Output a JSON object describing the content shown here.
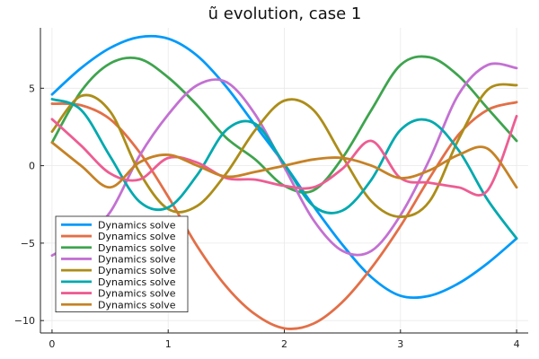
{
  "chart_data": {
    "type": "line",
    "title": "ũ evolution, case 1",
    "xlabel": "",
    "ylabel": "",
    "xlim": [
      -0.1,
      4.1
    ],
    "ylim": [
      -10.8,
      8.9
    ],
    "xticks": [
      0,
      1,
      2,
      3,
      4
    ],
    "yticks": [
      -10,
      -5,
      0,
      5
    ],
    "xtick_labels": [
      "0",
      "1",
      "2",
      "3",
      "4"
    ],
    "ytick_labels": [
      "−10",
      "−5",
      "0",
      "5"
    ],
    "grid": true,
    "legend_position": "bottom-left",
    "x": [
      0,
      0.25,
      0.5,
      0.75,
      1,
      1.25,
      1.5,
      1.75,
      2,
      2.25,
      2.5,
      2.75,
      3,
      3.25,
      3.5,
      3.75,
      4
    ],
    "series": [
      {
        "name": "Dynamics solve",
        "color": "#009AFA",
        "values": [
          4.6,
          6.3,
          7.6,
          8.3,
          8.2,
          7.1,
          5.1,
          2.6,
          0.1,
          -2.6,
          -5.1,
          -7.2,
          -8.4,
          -8.4,
          -7.6,
          -6.3,
          -4.7
        ]
      },
      {
        "name": "Dynamics solve",
        "color": "#E36F47",
        "values": [
          4.0,
          3.9,
          3.0,
          0.9,
          -2.0,
          -5.2,
          -7.8,
          -9.6,
          -10.5,
          -10.2,
          -8.8,
          -6.6,
          -3.9,
          -0.8,
          2.0,
          3.6,
          4.1
        ]
      },
      {
        "name": "Dynamics solve",
        "color": "#3EA44E",
        "values": [
          1.5,
          4.8,
          6.6,
          6.9,
          5.7,
          3.9,
          1.8,
          0.4,
          -1.3,
          -1.6,
          0.5,
          3.6,
          6.5,
          7.0,
          5.8,
          3.7,
          1.6
        ]
      },
      {
        "name": "Dynamics solve",
        "color": "#C371D2",
        "values": [
          -5.8,
          -4.7,
          -3.0,
          0.6,
          3.3,
          5.2,
          5.4,
          3.3,
          -0.1,
          -3.5,
          -5.5,
          -5.5,
          -3.2,
          0.4,
          4.6,
          6.5,
          6.3
        ]
      },
      {
        "name": "Dynamics solve",
        "color": "#AC8D19",
        "values": [
          2.2,
          4.5,
          3.5,
          -0.4,
          -2.8,
          -2.6,
          -0.5,
          2.3,
          4.2,
          3.6,
          0.6,
          -2.3,
          -3.3,
          -2.3,
          1.7,
          4.9,
          5.2
        ]
      },
      {
        "name": "Dynamics solve",
        "color": "#00A9AE",
        "values": [
          4.3,
          3.6,
          0.6,
          -2.3,
          -2.7,
          -0.6,
          2.3,
          2.7,
          0.1,
          -2.6,
          -2.9,
          -0.9,
          2.3,
          2.9,
          1.0,
          -2.2,
          -4.7
        ]
      },
      {
        "name": "Dynamics solve",
        "color": "#ED5D92",
        "values": [
          3.0,
          1.3,
          -0.5,
          -0.9,
          0.5,
          0.2,
          -0.8,
          -0.9,
          -1.3,
          -1.4,
          -0.2,
          1.6,
          -0.8,
          -1.1,
          -1.4,
          -1.6,
          3.2
        ]
      },
      {
        "name": "Dynamics solve",
        "color": "#C68225",
        "values": [
          1.5,
          0.0,
          -1.4,
          0.2,
          0.7,
          0.0,
          -0.7,
          -0.4,
          0.0,
          0.4,
          0.5,
          0.0,
          -0.8,
          -0.3,
          0.7,
          1.1,
          -1.4
        ]
      }
    ]
  }
}
